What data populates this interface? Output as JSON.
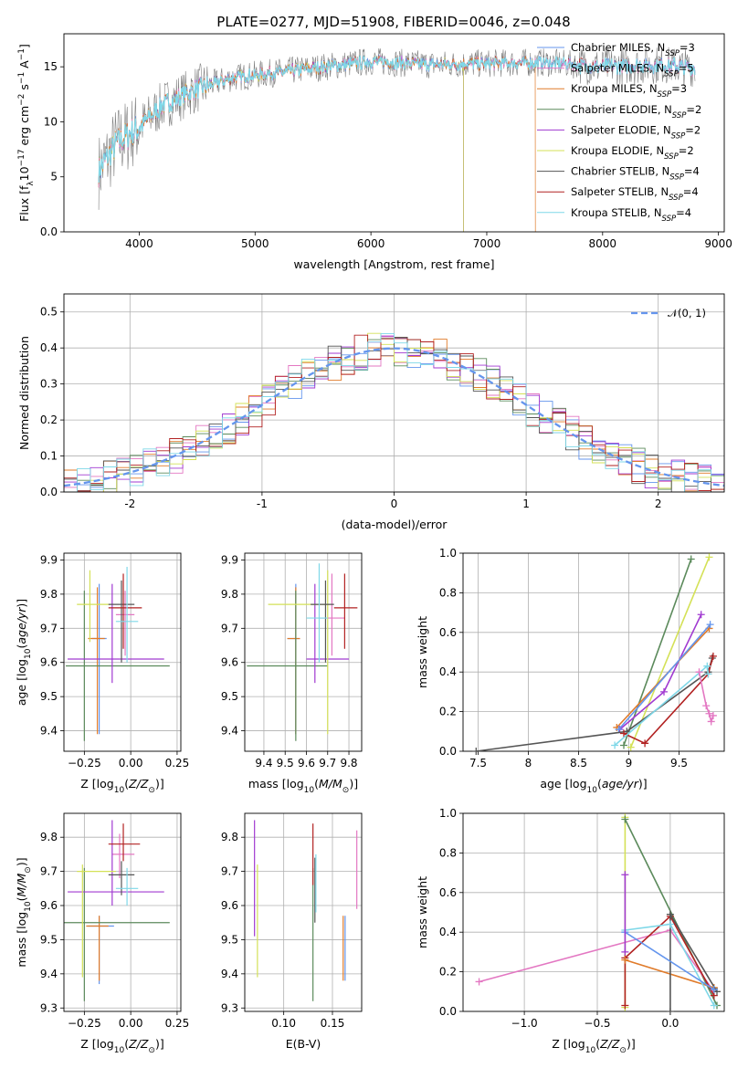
{
  "figure": {
    "title": "PLATE=0277, MJD=51908, FIBERID=0046, z=0.048"
  },
  "colors": {
    "Chabrier MILES": "#6495ed",
    "Salpeter MILES": "#e377c2",
    "Kroupa MILES": "#e07b2a",
    "Chabrier ELODIE": "#5b8a5b",
    "Salpeter ELODIE": "#a13ad1",
    "Kroupa ELODIE": "#d4e157",
    "Chabrier STELIB": "#555555",
    "Salpeter STELIB": "#b22222",
    "Kroupa STELIB": "#7fd8e8"
  },
  "legend_spectrum": [
    {
      "label": "Chabrier MILES, N",
      "sub": "SSP",
      "tail": "=3",
      "color": "#6495ed"
    },
    {
      "label": "Salpeter MILES, N",
      "sub": "SSP",
      "tail": "=5",
      "color": "#e377c2"
    },
    {
      "label": "Kroupa MILES, N",
      "sub": "SSP",
      "tail": "=3",
      "color": "#e07b2a"
    },
    {
      "label": "Chabrier ELODIE, N",
      "sub": "SSP",
      "tail": "=2",
      "color": "#5b8a5b"
    },
    {
      "label": "Salpeter ELODIE, N",
      "sub": "SSP",
      "tail": "=2",
      "color": "#a13ad1"
    },
    {
      "label": "Kroupa ELODIE, N",
      "sub": "SSP",
      "tail": "=2",
      "color": "#d4e157"
    },
    {
      "label": "Chabrier STELIB, N",
      "sub": "SSP",
      "tail": "=4",
      "color": "#555555"
    },
    {
      "label": "Salpeter STELIB, N",
      "sub": "SSP",
      "tail": "=4",
      "color": "#b22222"
    },
    {
      "label": "Kroupa STELIB, N",
      "sub": "SSP",
      "tail": "=4",
      "color": "#7fd8e8"
    }
  ],
  "legend_hist": {
    "label": "𝒩(0, 1)",
    "color": "#6495ed"
  },
  "chart_data": [
    {
      "id": "spectrum",
      "type": "line",
      "title": "PLATE=0277, MJD=51908, FIBERID=0046, z=0.048",
      "xlabel": "wavelength [Angstrom, rest frame]",
      "ylabel": "Flux [f_λ 10^-17 erg cm^-2 s^-1 A^-1]",
      "xlim": [
        3350,
        9050
      ],
      "ylim": [
        0,
        18
      ],
      "xticks": [
        4000,
        5000,
        6000,
        7000,
        8000,
        9000
      ],
      "yticks": [
        0,
        5,
        10,
        15
      ],
      "grid": false,
      "continuum": {
        "x": [
          3650,
          3800,
          4000,
          4200,
          4500,
          4800,
          5200,
          5600,
          6000,
          6500,
          7000,
          7500,
          8000,
          8500,
          8800
        ],
        "y": [
          5.5,
          8.0,
          9.5,
          11.5,
          13.0,
          14.0,
          14.5,
          15.0,
          15.5,
          15.2,
          15.3,
          15.4,
          15.0,
          15.2,
          14.9
        ]
      },
      "series_end": {
        "Kroupa MILES": 7420,
        "Chabrier ELODIE": 6800,
        "Salpeter ELODIE": 6800,
        "Kroupa ELODIE": 6800
      }
    },
    {
      "id": "residual_hist",
      "type": "bar",
      "xlabel": "(data-model)/error",
      "ylabel": "Normed distribution",
      "xlim": [
        -2.5,
        2.5
      ],
      "ylim": [
        0,
        0.55
      ],
      "xticks": [
        -2,
        -1,
        0,
        1,
        2
      ],
      "yticks": [
        0.0,
        0.1,
        0.2,
        0.3,
        0.4,
        0.5
      ],
      "grid": true,
      "bin_edges": [
        -2.5,
        -2.4,
        -2.3,
        -2.2,
        -2.1,
        -2.0,
        -1.9,
        -1.8,
        -1.7,
        -1.6,
        -1.5,
        -1.4,
        -1.3,
        -1.2,
        -1.1,
        -1.0,
        -0.9,
        -0.8,
        -0.7,
        -0.6,
        -0.5,
        -0.4,
        -0.3,
        -0.2,
        -0.1,
        0.0,
        0.1,
        0.2,
        0.3,
        0.4,
        0.5,
        0.6,
        0.7,
        0.8,
        0.9,
        1.0,
        1.1,
        1.2,
        1.3,
        1.4,
        1.5,
        1.6,
        1.7,
        1.8,
        1.9,
        2.0,
        2.1,
        2.2,
        2.3,
        2.4,
        2.5
      ],
      "reference_curve": {
        "name": "𝒩(0, 1)",
        "style": "dashed"
      }
    },
    {
      "id": "age_vs_Z",
      "type": "scatter",
      "xlabel": "Z [log10(Z/Z⊙)]",
      "ylabel": "age [log10(age/yr)]",
      "xlim": [
        -0.36,
        0.27
      ],
      "ylim": [
        9.34,
        9.92
      ],
      "xticks": [
        -0.25,
        0.0,
        0.25
      ],
      "xticklabels": [
        "−0.25",
        "0.00",
        "0.25"
      ],
      "yticks": [
        9.4,
        9.5,
        9.6,
        9.7,
        9.8,
        9.9
      ],
      "grid": true,
      "points": [
        {
          "m": "Chabrier MILES",
          "x": -0.17,
          "xe": [
            -0.21,
            -0.13
          ],
          "y": 9.67,
          "ye": [
            9.39,
            9.83
          ]
        },
        {
          "m": "Salpeter MILES",
          "x": -0.03,
          "xe": [
            -0.08,
            0.02
          ],
          "y": 9.74,
          "ye": [
            9.62,
            9.81
          ]
        },
        {
          "m": "Kroupa MILES",
          "x": -0.18,
          "xe": [
            -0.23,
            -0.14
          ],
          "y": 9.67,
          "ye": [
            9.39,
            9.82
          ]
        },
        {
          "m": "Chabrier ELODIE",
          "x": -0.25,
          "xe": [
            -0.35,
            0.21
          ],
          "y": 9.59,
          "ye": [
            9.37,
            9.81
          ]
        },
        {
          "m": "Salpeter ELODIE",
          "x": -0.1,
          "xe": [
            -0.34,
            0.18
          ],
          "y": 9.61,
          "ye": [
            9.54,
            9.83
          ]
        },
        {
          "m": "Kroupa ELODIE",
          "x": -0.22,
          "xe": [
            -0.29,
            -0.11
          ],
          "y": 9.77,
          "ye": [
            9.66,
            9.87
          ]
        },
        {
          "m": "Chabrier STELIB",
          "x": -0.05,
          "xe": [
            -0.12,
            0.02
          ],
          "y": 9.77,
          "ye": [
            9.6,
            9.84
          ]
        },
        {
          "m": "Salpeter STELIB",
          "x": -0.04,
          "xe": [
            -0.12,
            0.06
          ],
          "y": 9.76,
          "ye": [
            9.64,
            9.86
          ]
        },
        {
          "m": "Kroupa STELIB",
          "x": -0.02,
          "xe": [
            -0.08,
            0.04
          ],
          "y": 9.72,
          "ye": [
            9.6,
            9.88
          ]
        }
      ]
    },
    {
      "id": "age_vs_mass",
      "type": "scatter",
      "xlabel": "mass [log10(M/M⊙)]",
      "ylabel": "",
      "xlim": [
        9.31,
        9.86
      ],
      "ylim": [
        9.34,
        9.92
      ],
      "xticks": [
        9.4,
        9.5,
        9.6,
        9.7,
        9.8
      ],
      "yticks": [
        9.4,
        9.5,
        9.6,
        9.7,
        9.8,
        9.9
      ],
      "grid": true,
      "points": [
        {
          "m": "Chabrier MILES",
          "x": 9.55,
          "xe": [
            9.51,
            9.57
          ],
          "y": 9.67,
          "ye": [
            9.39,
            9.83
          ]
        },
        {
          "m": "Salpeter MILES",
          "x": 9.72,
          "xe": [
            9.66,
            9.78
          ],
          "y": 9.73,
          "ye": [
            9.62,
            9.86
          ]
        },
        {
          "m": "Kroupa MILES",
          "x": 9.55,
          "xe": [
            9.51,
            9.57
          ],
          "y": 9.67,
          "ye": [
            9.39,
            9.82
          ]
        },
        {
          "m": "Chabrier ELODIE",
          "x": 9.55,
          "xe": [
            9.32,
            9.7
          ],
          "y": 9.59,
          "ye": [
            9.37,
            9.81
          ]
        },
        {
          "m": "Salpeter ELODIE",
          "x": 9.64,
          "xe": [
            9.6,
            9.8
          ],
          "y": 9.61,
          "ye": [
            9.54,
            9.83
          ]
        },
        {
          "m": "Kroupa ELODIE",
          "x": 9.7,
          "xe": [
            9.42,
            9.71
          ],
          "y": 9.77,
          "ye": [
            9.39,
            9.87
          ]
        },
        {
          "m": "Chabrier STELIB",
          "x": 9.69,
          "xe": [
            9.62,
            9.73
          ],
          "y": 9.77,
          "ye": [
            9.6,
            9.84
          ]
        },
        {
          "m": "Salpeter STELIB",
          "x": 9.78,
          "xe": [
            9.73,
            9.84
          ],
          "y": 9.76,
          "ye": [
            9.64,
            9.86
          ]
        },
        {
          "m": "Kroupa STELIB",
          "x": 9.66,
          "xe": [
            9.6,
            9.7
          ],
          "y": 9.73,
          "ye": [
            9.6,
            9.89
          ]
        }
      ]
    },
    {
      "id": "weight_vs_age",
      "type": "line",
      "xlabel": "age [log10(age/yr)]",
      "ylabel": "mass weight",
      "xlim": [
        7.35,
        9.95
      ],
      "ylim": [
        0,
        1
      ],
      "xticks": [
        7.5,
        8.0,
        8.5,
        9.0,
        9.5
      ],
      "yticks": [
        0.0,
        0.2,
        0.4,
        0.6,
        0.8,
        1.0
      ],
      "grid": true,
      "series": [
        {
          "name": "Chabrier ELODIE",
          "x": [
            8.95,
            9.62
          ],
          "y": [
            0.03,
            0.97
          ]
        },
        {
          "name": "Kroupa ELODIE",
          "x": [
            9.02,
            9.8
          ],
          "y": [
            0.02,
            0.98
          ]
        },
        {
          "name": "Salpeter ELODIE",
          "x": [
            8.91,
            9.35,
            9.72
          ],
          "y": [
            0.11,
            0.3,
            0.69
          ]
        },
        {
          "name": "Kroupa MILES",
          "x": [
            8.88,
            9.8
          ],
          "y": [
            0.12,
            0.62
          ]
        },
        {
          "name": "Chabrier MILES",
          "x": [
            8.9,
            9.81
          ],
          "y": [
            0.11,
            0.64
          ]
        },
        {
          "name": "Chabrier STELIB",
          "x": [
            7.48,
            8.98,
            9.79,
            9.83
          ],
          "y": [
            0.0,
            0.1,
            0.4,
            0.47
          ]
        },
        {
          "name": "Salpeter STELIB",
          "x": [
            8.95,
            9.16,
            9.79,
            9.84
          ],
          "y": [
            0.09,
            0.04,
            0.39,
            0.48
          ]
        },
        {
          "name": "Kroupa STELIB",
          "x": [
            8.86,
            9.78,
            9.79
          ],
          "y": [
            0.03,
            0.43,
            0.39
          ]
        },
        {
          "name": "Salpeter MILES",
          "x": [
            9.7,
            9.77,
            9.8,
            9.82,
            9.84
          ],
          "y": [
            0.4,
            0.23,
            0.19,
            0.15,
            0.18
          ]
        }
      ]
    },
    {
      "id": "mass_vs_Z",
      "type": "scatter",
      "xlabel": "Z [log10(Z/Z⊙)]",
      "ylabel": "mass [log10(M/M⊙)]",
      "xlim": [
        -0.36,
        0.27
      ],
      "ylim": [
        9.29,
        9.87
      ],
      "xticks": [
        -0.25,
        0.0,
        0.25
      ],
      "xticklabels": [
        "−0.25",
        "0.00",
        "0.25"
      ],
      "yticks": [
        9.3,
        9.4,
        9.5,
        9.6,
        9.7,
        9.8
      ],
      "grid": true,
      "points": [
        {
          "m": "Chabrier MILES",
          "x": -0.17,
          "xe": [
            -0.23,
            -0.09
          ],
          "y": 9.54,
          "ye": [
            9.37,
            9.57
          ]
        },
        {
          "m": "Salpeter MILES",
          "x": -0.06,
          "xe": [
            -0.1,
            0.02
          ],
          "y": 9.75,
          "ye": [
            9.68,
            9.81
          ]
        },
        {
          "m": "Kroupa MILES",
          "x": -0.17,
          "xe": [
            -0.24,
            -0.12
          ],
          "y": 9.54,
          "ye": [
            9.38,
            9.57
          ]
        },
        {
          "m": "Chabrier ELODIE",
          "x": -0.25,
          "xe": [
            -0.36,
            0.21
          ],
          "y": 9.55,
          "ye": [
            9.32,
            9.71
          ]
        },
        {
          "m": "Salpeter ELODIE",
          "x": -0.1,
          "xe": [
            -0.34,
            0.18
          ],
          "y": 9.64,
          "ye": [
            9.6,
            9.85
          ]
        },
        {
          "m": "Kroupa ELODIE",
          "x": -0.26,
          "xe": [
            -0.29,
            -0.08
          ],
          "y": 9.7,
          "ye": [
            9.39,
            9.72
          ]
        },
        {
          "m": "Chabrier STELIB",
          "x": -0.05,
          "xe": [
            -0.12,
            0.02
          ],
          "y": 9.69,
          "ye": [
            9.63,
            9.73
          ]
        },
        {
          "m": "Salpeter STELIB",
          "x": -0.04,
          "xe": [
            -0.12,
            0.05
          ],
          "y": 9.78,
          "ye": [
            9.73,
            9.84
          ]
        },
        {
          "m": "Kroupa STELIB",
          "x": -0.02,
          "xe": [
            -0.08,
            0.04
          ],
          "y": 9.65,
          "ye": [
            9.6,
            9.71
          ]
        }
      ]
    },
    {
      "id": "mass_vs_ebv",
      "type": "scatter",
      "xlabel": "E(B-V)",
      "ylabel": "",
      "xlim": [
        0.06,
        0.18
      ],
      "ylim": [
        9.29,
        9.87
      ],
      "xticks": [
        0.1,
        0.15
      ],
      "xticklabels": [
        "0.10",
        "0.15"
      ],
      "yticks": [
        9.3,
        9.4,
        9.5,
        9.6,
        9.7,
        9.8
      ],
      "grid": true,
      "points": [
        {
          "m": "Chabrier MILES",
          "x": 0.163,
          "y": 9.54,
          "ye": [
            9.38,
            9.57
          ]
        },
        {
          "m": "Salpeter MILES",
          "x": 0.175,
          "y": 9.7,
          "ye": [
            9.59,
            9.82
          ]
        },
        {
          "m": "Kroupa MILES",
          "x": 0.161,
          "y": 9.54,
          "ye": [
            9.38,
            9.57
          ]
        },
        {
          "m": "Chabrier ELODIE",
          "x": 0.13,
          "y": 9.55,
          "ye": [
            9.32,
            9.71
          ]
        },
        {
          "m": "Salpeter ELODIE",
          "x": 0.07,
          "y": 9.64,
          "ye": [
            9.51,
            9.85
          ]
        },
        {
          "m": "Kroupa ELODIE",
          "x": 0.073,
          "y": 9.7,
          "ye": [
            9.39,
            9.72
          ]
        },
        {
          "m": "Chabrier STELIB",
          "x": 0.132,
          "y": 9.69,
          "ye": [
            9.55,
            9.74
          ]
        },
        {
          "m": "Salpeter STELIB",
          "x": 0.13,
          "y": 9.78,
          "ye": [
            9.66,
            9.84
          ]
        },
        {
          "m": "Kroupa STELIB",
          "x": 0.133,
          "y": 9.67,
          "ye": [
            9.58,
            9.75
          ]
        }
      ]
    },
    {
      "id": "weight_vs_Z",
      "type": "line",
      "xlabel": "Z [log10(Z/Z⊙)]",
      "ylabel": "mass weight",
      "xlim": [
        -1.42,
        0.37
      ],
      "ylim": [
        0,
        1
      ],
      "xticks": [
        -1.0,
        -0.5,
        0.0
      ],
      "xticklabels": [
        "−1.0",
        "−0.5",
        "0.0"
      ],
      "yticks": [
        0.0,
        0.2,
        0.4,
        0.6,
        0.8,
        1.0
      ],
      "grid": true,
      "series": [
        {
          "name": "Kroupa ELODIE",
          "x": [
            -0.31,
            -0.31
          ],
          "y": [
            0.02,
            0.98
          ]
        },
        {
          "name": "Chabrier ELODIE",
          "x": [
            -0.31,
            0.32
          ],
          "y": [
            0.97,
            0.03
          ]
        },
        {
          "name": "Salpeter MILES",
          "x": [
            -1.31,
            0.0,
            0.3
          ],
          "y": [
            0.15,
            0.41,
            0.1
          ]
        },
        {
          "name": "Salpeter STELIB",
          "x": [
            -0.31,
            -0.31,
            0.0,
            0.3
          ],
          "y": [
            0.03,
            0.27,
            0.48,
            0.08
          ]
        },
        {
          "name": "Kroupa MILES",
          "x": [
            -0.31,
            0.3
          ],
          "y": [
            0.26,
            0.12
          ]
        },
        {
          "name": "Chabrier STELIB",
          "x": [
            0.0,
            0.0,
            0.32
          ],
          "y": [
            0.0,
            0.49,
            0.1
          ]
        },
        {
          "name": "Kroupa STELIB",
          "x": [
            -0.31,
            0.0,
            0.3
          ],
          "y": [
            0.41,
            0.44,
            0.03
          ]
        },
        {
          "name": "Chabrier MILES",
          "x": [
            -0.31,
            0.3
          ],
          "y": [
            0.4,
            0.11
          ]
        },
        {
          "name": "Salpeter ELODIE",
          "x": [
            -0.31,
            -0.31
          ],
          "y": [
            0.3,
            0.69
          ]
        }
      ]
    }
  ]
}
